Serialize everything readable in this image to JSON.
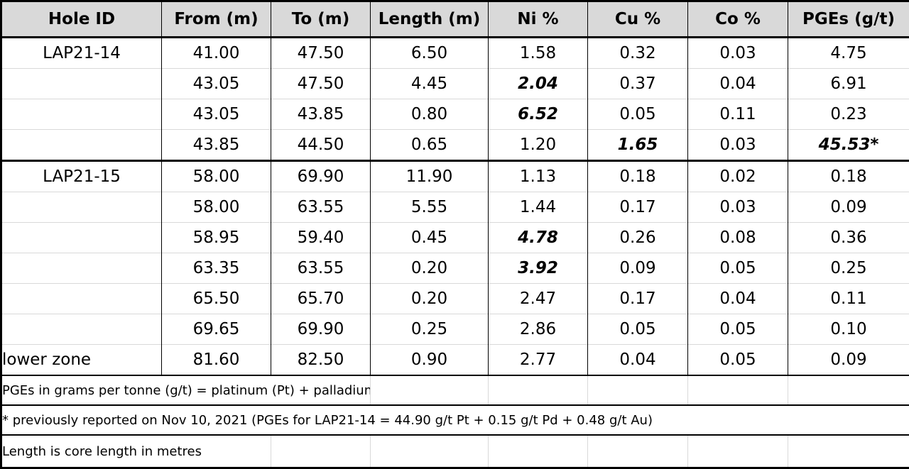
{
  "table": {
    "headers": [
      "Hole ID",
      "From (m)",
      "To (m)",
      "Length (m)",
      "Ni %",
      "Cu %",
      "Co %",
      "PGEs (g/t)"
    ],
    "rows": [
      {
        "hole": "LAP21-14",
        "from": "41.00",
        "to": "47.50",
        "length": "6.50",
        "ni": "1.58",
        "cu": "0.32",
        "co": "0.03",
        "pge": "4.75"
      },
      {
        "hole": "",
        "from": "43.05",
        "to": "47.50",
        "length": "4.45",
        "ni": "2.04",
        "cu": "0.37",
        "co": "0.04",
        "pge": "6.91"
      },
      {
        "hole": "",
        "from": "43.05",
        "to": "43.85",
        "length": "0.80",
        "ni": "6.52",
        "cu": "0.05",
        "co": "0.11",
        "pge": "0.23"
      },
      {
        "hole": "",
        "from": "43.85",
        "to": "44.50",
        "length": "0.65",
        "ni": "1.20",
        "cu": "1.65",
        "co": "0.03",
        "pge": "45.53*"
      },
      {
        "hole": "LAP21-15",
        "from": "58.00",
        "to": "69.90",
        "length": "11.90",
        "ni": "1.13",
        "cu": "0.18",
        "co": "0.02",
        "pge": "0.18"
      },
      {
        "hole": "",
        "from": "58.00",
        "to": "63.55",
        "length": "5.55",
        "ni": "1.44",
        "cu": "0.17",
        "co": "0.03",
        "pge": "0.09"
      },
      {
        "hole": "",
        "from": "58.95",
        "to": "59.40",
        "length": "0.45",
        "ni": "4.78",
        "cu": "0.26",
        "co": "0.08",
        "pge": "0.36"
      },
      {
        "hole": "",
        "from": "63.35",
        "to": "63.55",
        "length": "0.20",
        "ni": "3.92",
        "cu": "0.09",
        "co": "0.05",
        "pge": "0.25"
      },
      {
        "hole": "",
        "from": "65.50",
        "to": "65.70",
        "length": "0.20",
        "ni": "2.47",
        "cu": "0.17",
        "co": "0.04",
        "pge": "0.11"
      },
      {
        "hole": "",
        "from": "69.65",
        "to": "69.90",
        "length": "0.25",
        "ni": "2.86",
        "cu": "0.05",
        "co": "0.05",
        "pge": "0.10"
      },
      {
        "hole": "lower zone",
        "from": "81.60",
        "to": "82.50",
        "length": "0.90",
        "ni": "2.77",
        "cu": "0.04",
        "co": "0.05",
        "pge": "0.09"
      }
    ],
    "notes": [
      "PGEs in grams per tonne (g/t) = platinum (Pt) + palladium (Pd) + gold (Au)",
      "* previously reported on Nov 10, 2021 (PGEs for LAP21-14 = 44.90 g/t Pt + 0.15 g/t Pd + 0.48 g/t Au)",
      "Length is core length in metres"
    ]
  }
}
